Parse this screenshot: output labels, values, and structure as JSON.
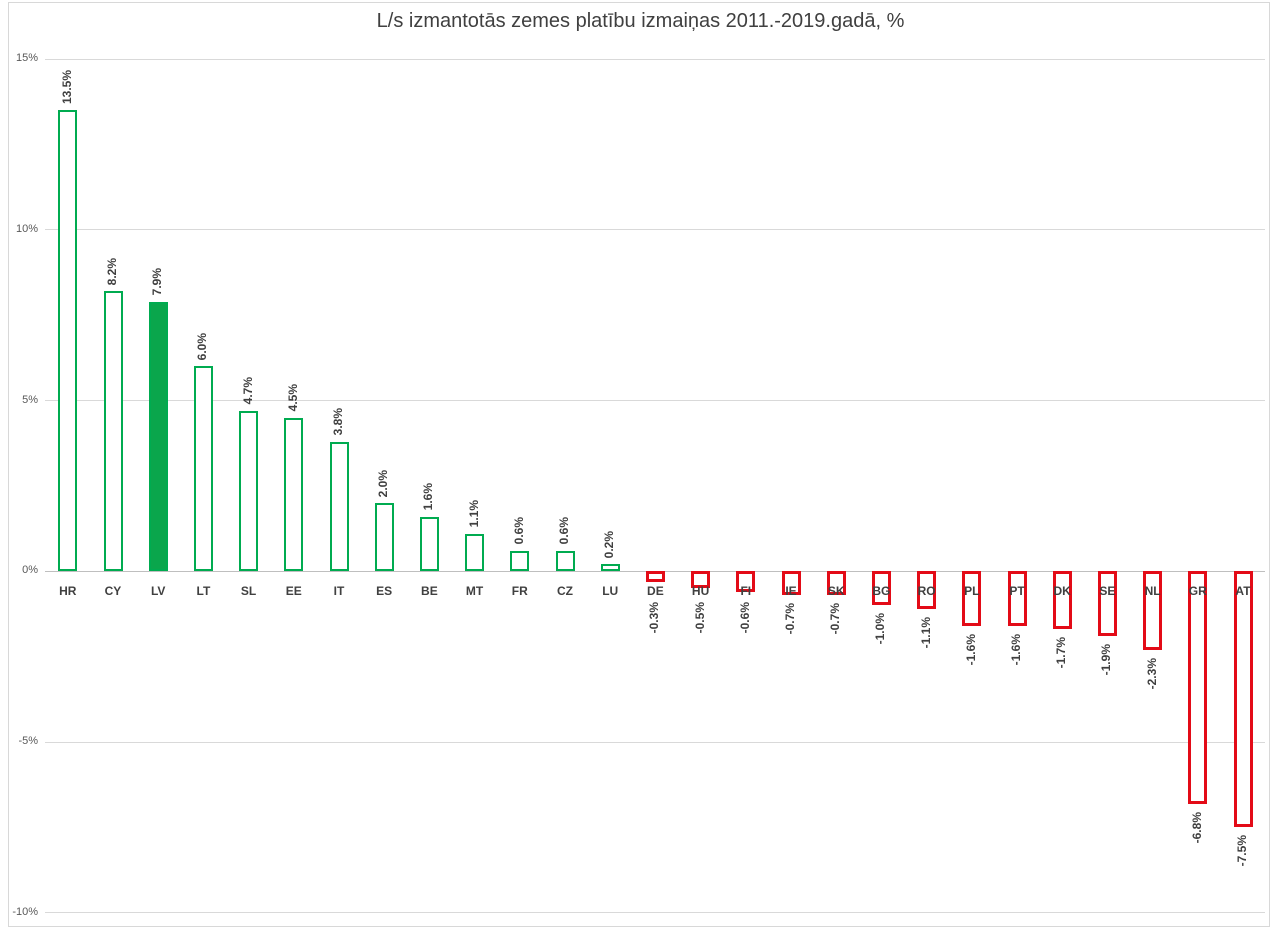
{
  "chart_data": {
    "type": "bar",
    "title": "L/s izmantotās zemes platību izmaiņas 2011.-2019.gadā, %",
    "xlabel": "",
    "ylabel": "",
    "ylim": [
      -10,
      15
    ],
    "grid": true,
    "legend": "none",
    "highlighted_category": "LV",
    "colors": {
      "positive_outline": "#00AB50",
      "highlight_fill": "#0aa64c",
      "negative_outline": "#e30b17",
      "gridline": "#d9d9d9",
      "zero_line": "#bfbfbf",
      "label_text": "#404040",
      "axis_text": "#595959"
    },
    "yticks": [
      {
        "value": 15,
        "label": "15%"
      },
      {
        "value": 10,
        "label": "10%"
      },
      {
        "value": 5,
        "label": "5%"
      },
      {
        "value": 0,
        "label": "0%"
      },
      {
        "value": -5,
        "label": "-5%"
      },
      {
        "value": -10,
        "label": "-10%"
      }
    ],
    "categories": [
      "HR",
      "CY",
      "LV",
      "LT",
      "SL",
      "EE",
      "IT",
      "ES",
      "BE",
      "MT",
      "FR",
      "CZ",
      "LU",
      "DE",
      "HU",
      "FI",
      "IE",
      "SK",
      "BG",
      "RO",
      "PL",
      "PT",
      "DK",
      "SE",
      "NL",
      "GR",
      "AT"
    ],
    "values": [
      13.5,
      8.2,
      7.9,
      6.0,
      4.7,
      4.5,
      3.8,
      2.0,
      1.6,
      1.1,
      0.6,
      0.6,
      0.2,
      -0.3,
      -0.5,
      -0.6,
      -0.7,
      -0.7,
      -1.0,
      -1.1,
      -1.6,
      -1.6,
      -1.7,
      -1.9,
      -2.3,
      -6.8,
      -7.5
    ],
    "value_labels": [
      "13.5%",
      "8.2%",
      "7.9%",
      "6.0%",
      "4.7%",
      "4.5%",
      "3.8%",
      "2.0%",
      "1.6%",
      "1.1%",
      "0.6%",
      "0.6%",
      "0.2%",
      "-0.3%",
      "-0.5%",
      "-0.6%",
      "-0.7%",
      "-0.7%",
      "-1.0%",
      "-1.1%",
      "-1.6%",
      "-1.6%",
      "-1.7%",
      "-1.9%",
      "-2.3%",
      "-6.8%",
      "-7.5%"
    ]
  }
}
